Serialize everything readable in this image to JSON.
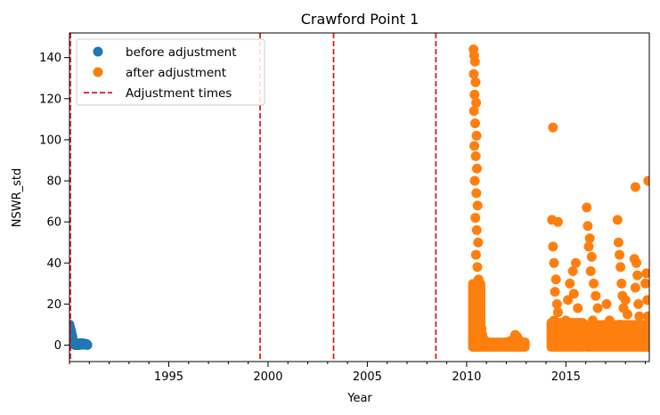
{
  "chart_data": {
    "type": "scatter",
    "title": "Crawford Point 1",
    "xlabel": "Year",
    "ylabel": "NSWR_std",
    "xlim": [
      1990.0,
      2019.2
    ],
    "ylim": [
      -8,
      152
    ],
    "x_ticks": [
      1995,
      2000,
      2005,
      2010,
      2015
    ],
    "y_ticks": [
      0,
      20,
      40,
      60,
      80,
      100,
      120,
      140
    ],
    "legend": {
      "position": "upper-left",
      "entries": [
        {
          "label": "before adjustment",
          "marker": "circle",
          "color": "#1f77b4"
        },
        {
          "label": "after adjustment",
          "marker": "circle",
          "color": "#ff7f0e"
        },
        {
          "label": "Adjustment times",
          "marker": "dashed-line",
          "color": "#d62728"
        }
      ]
    },
    "adjustment_times": [
      1990.0,
      1999.6,
      2003.3,
      2008.45
    ],
    "series": [
      {
        "name": "before adjustment",
        "color": "#1f77b4",
        "points": [
          [
            1990.0,
            10
          ],
          [
            1990.02,
            9
          ],
          [
            1990.05,
            8
          ],
          [
            1990.08,
            7
          ],
          [
            1990.1,
            6
          ],
          [
            1990.12,
            5
          ],
          [
            1990.15,
            4
          ],
          [
            1990.05,
            3
          ],
          [
            1990.1,
            2
          ],
          [
            1990.15,
            1.5
          ],
          [
            1990.2,
            1
          ],
          [
            1990.25,
            0.5
          ],
          [
            1990.3,
            0
          ],
          [
            1990.35,
            1
          ],
          [
            1990.4,
            0.5
          ],
          [
            1990.45,
            0
          ],
          [
            1990.5,
            1
          ],
          [
            1990.55,
            0.5
          ],
          [
            1990.6,
            0.2
          ],
          [
            1990.65,
            1
          ],
          [
            1990.7,
            0.3
          ],
          [
            1990.75,
            0.8
          ],
          [
            1990.8,
            0.2
          ],
          [
            1990.85,
            0.6
          ],
          [
            1990.9,
            0.1
          ],
          [
            1990.0,
            2
          ],
          [
            1990.02,
            1
          ],
          [
            1990.04,
            3
          ],
          [
            1990.06,
            0.5
          ],
          [
            1990.08,
            2.5
          ]
        ]
      },
      {
        "name": "after adjustment",
        "color": "#ff7f0e",
        "points": [
          [
            2010.35,
            144
          ],
          [
            2010.38,
            141
          ],
          [
            2010.42,
            138
          ],
          [
            2010.36,
            132
          ],
          [
            2010.45,
            128
          ],
          [
            2010.4,
            122
          ],
          [
            2010.48,
            118
          ],
          [
            2010.37,
            114
          ],
          [
            2010.43,
            108
          ],
          [
            2010.5,
            102
          ],
          [
            2010.39,
            97
          ],
          [
            2010.46,
            92
          ],
          [
            2010.52,
            86
          ],
          [
            2010.41,
            80
          ],
          [
            2010.49,
            74
          ],
          [
            2010.55,
            68
          ],
          [
            2010.44,
            62
          ],
          [
            2010.51,
            56
          ],
          [
            2010.58,
            50
          ],
          [
            2010.47,
            44
          ],
          [
            2010.54,
            38
          ],
          [
            2010.6,
            32
          ],
          [
            2010.62,
            26
          ],
          [
            2010.65,
            20
          ],
          [
            2010.68,
            15
          ],
          [
            2010.7,
            11
          ],
          [
            2010.75,
            8
          ],
          [
            2010.8,
            5
          ],
          [
            2010.85,
            3
          ],
          [
            2010.95,
            2
          ],
          [
            2011.1,
            1
          ],
          [
            2011.3,
            0.5
          ],
          [
            2011.5,
            1
          ],
          [
            2011.8,
            0.5
          ],
          [
            2012.0,
            1.5
          ],
          [
            2012.2,
            2
          ],
          [
            2012.35,
            3
          ],
          [
            2012.45,
            5
          ],
          [
            2012.55,
            4
          ],
          [
            2012.7,
            2
          ],
          [
            2012.85,
            1
          ],
          [
            2010.4,
            0.5
          ],
          [
            2010.5,
            1
          ],
          [
            2014.35,
            106
          ],
          [
            2014.3,
            61
          ],
          [
            2014.6,
            60
          ],
          [
            2014.35,
            48
          ],
          [
            2014.4,
            40
          ],
          [
            2014.5,
            32
          ],
          [
            2014.45,
            26
          ],
          [
            2014.55,
            20
          ],
          [
            2014.6,
            16
          ],
          [
            2014.4,
            12
          ],
          [
            2014.5,
            8
          ],
          [
            2014.7,
            5
          ],
          [
            2014.35,
            3
          ],
          [
            2014.8,
            1
          ],
          [
            2015.0,
            12
          ],
          [
            2015.1,
            22
          ],
          [
            2015.2,
            30
          ],
          [
            2015.35,
            36
          ],
          [
            2015.5,
            40
          ],
          [
            2015.4,
            25
          ],
          [
            2015.6,
            18
          ],
          [
            2015.8,
            10
          ],
          [
            2015.3,
            6
          ],
          [
            2016.05,
            67
          ],
          [
            2016.1,
            58
          ],
          [
            2016.2,
            52
          ],
          [
            2016.15,
            48
          ],
          [
            2016.3,
            43
          ],
          [
            2016.25,
            36
          ],
          [
            2016.4,
            30
          ],
          [
            2016.5,
            24
          ],
          [
            2016.6,
            18
          ],
          [
            2016.35,
            12
          ],
          [
            2016.7,
            8
          ],
          [
            2016.45,
            4
          ],
          [
            2016.8,
            2
          ],
          [
            2017.05,
            20
          ],
          [
            2017.2,
            12
          ],
          [
            2017.4,
            6
          ],
          [
            2017.6,
            61
          ],
          [
            2017.65,
            50
          ],
          [
            2017.7,
            44
          ],
          [
            2017.75,
            38
          ],
          [
            2017.8,
            30
          ],
          [
            2017.85,
            24
          ],
          [
            2017.9,
            18
          ],
          [
            2017.7,
            10
          ],
          [
            2018.0,
            22
          ],
          [
            2018.1,
            15
          ],
          [
            2018.2,
            9
          ],
          [
            2018.35,
            4
          ],
          [
            2018.5,
            77
          ],
          [
            2018.45,
            42
          ],
          [
            2018.55,
            40
          ],
          [
            2018.6,
            34
          ],
          [
            2018.5,
            28
          ],
          [
            2018.65,
            20
          ],
          [
            2018.7,
            14
          ],
          [
            2018.6,
            8
          ],
          [
            2018.8,
            3
          ],
          [
            2019.0,
            30
          ],
          [
            2019.05,
            35
          ],
          [
            2019.1,
            22
          ],
          [
            2019.15,
            80
          ],
          [
            2019.12,
            14
          ],
          [
            2019.08,
            6
          ],
          [
            2015.05,
            2
          ],
          [
            2016.9,
            1
          ],
          [
            2017.3,
            2
          ],
          [
            2018.9,
            1
          ]
        ]
      }
    ],
    "dense_bands": [
      {
        "x0": 2010.3,
        "x1": 2010.72,
        "y0": -1,
        "y1": 30
      },
      {
        "x0": 2010.3,
        "x1": 2012.95,
        "y0": -1,
        "y1": 1.5
      },
      {
        "x0": 2014.25,
        "x1": 2015.85,
        "y0": -1,
        "y1": 11
      },
      {
        "x0": 2016.0,
        "x1": 2019.2,
        "y0": -1,
        "y1": 10
      }
    ]
  }
}
